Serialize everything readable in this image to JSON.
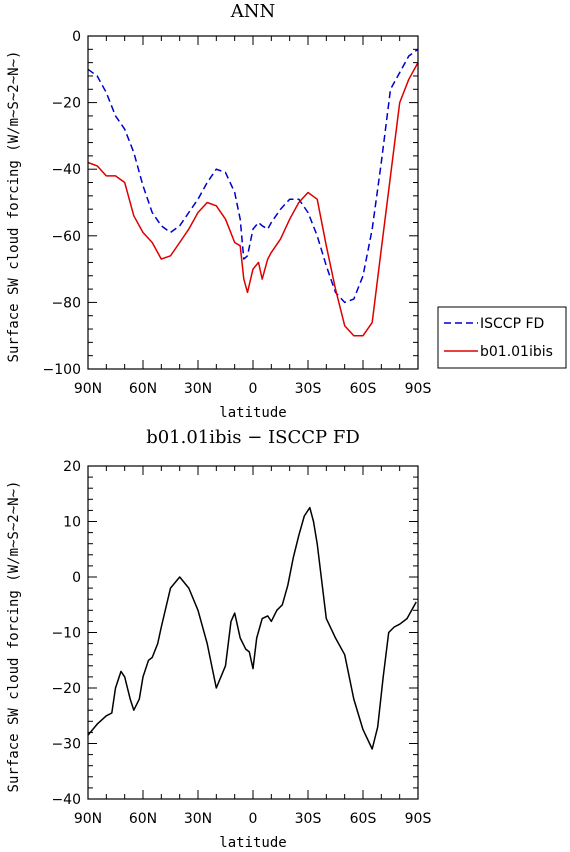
{
  "chart_data": [
    {
      "type": "line",
      "title": "ANN",
      "xlabel": "latitude",
      "ylabel": "Surface SW cloud forcing (W/m~S~2~N~)",
      "x_tick_labels": [
        "90N",
        "60N",
        "30N",
        "0",
        "30S",
        "60S",
        "90S"
      ],
      "x_tick_values": [
        90,
        60,
        30,
        0,
        -30,
        -60,
        -90
      ],
      "xlim": [
        90,
        -90
      ],
      "ylim": [
        -100,
        0
      ],
      "y_ticks": [
        0,
        -20,
        -40,
        -60,
        -80,
        -100
      ],
      "y_tick_labels": [
        "0",
        "−20",
        "−40",
        "−60",
        "−80",
        "−100"
      ],
      "legend": {
        "placement": "outside-right"
      },
      "x": [
        90,
        85,
        80,
        75,
        70,
        65,
        60,
        55,
        50,
        45,
        40,
        35,
        30,
        25,
        20,
        15,
        10,
        7,
        5,
        3,
        0,
        -3,
        -5,
        -8,
        -10,
        -15,
        -20,
        -25,
        -30,
        -35,
        -40,
        -45,
        -50,
        -55,
        -60,
        -65,
        -70,
        -75,
        -80,
        -85,
        -90
      ],
      "series": [
        {
          "name": "ISCCP FD",
          "color": "#0000cc",
          "dash": "dashed",
          "values": [
            -10,
            -12,
            -17,
            -24,
            -28,
            -35,
            -45,
            -53,
            -57,
            -59,
            -57,
            -53,
            -49,
            -44,
            -40,
            -41,
            -47,
            -55,
            -67,
            -66,
            -58,
            -56,
            -57,
            -58,
            -56,
            -52,
            -49,
            -49,
            -53,
            -60,
            -69,
            -77,
            -80,
            -79,
            -72,
            -58,
            -38,
            -16,
            -11,
            -6,
            -4
          ]
        },
        {
          "name": "b01.01ibis",
          "color": "#dd0000",
          "dash": "solid",
          "values": [
            -38,
            -39,
            -42,
            -42,
            -44,
            -54,
            -59,
            -62,
            -67,
            -66,
            -62,
            -58,
            -53,
            -50,
            -51,
            -55,
            -62,
            -63,
            -73,
            -77,
            -70,
            -68,
            -73,
            -67,
            -65,
            -61,
            -55,
            -50,
            -47,
            -49,
            -63,
            -76,
            -87,
            -90,
            -90,
            -86,
            -64,
            -42,
            -20,
            -13,
            -8
          ]
        }
      ]
    },
    {
      "type": "line",
      "title": "b01.01ibis − ISCCP FD",
      "xlabel": "latitude",
      "ylabel": "Surface SW cloud forcing (W/m~S~2~N~)",
      "x_tick_labels": [
        "90N",
        "60N",
        "30N",
        "0",
        "30S",
        "60S",
        "90S"
      ],
      "x_tick_values": [
        90,
        60,
        30,
        0,
        -30,
        -60,
        -90
      ],
      "xlim": [
        90,
        -90
      ],
      "ylim": [
        -40,
        20
      ],
      "y_ticks": [
        20,
        10,
        0,
        -10,
        -20,
        -30,
        -40
      ],
      "y_tick_labels": [
        "20",
        "10",
        "0",
        "−10",
        "−20",
        "−30",
        "−40"
      ],
      "x": [
        90,
        85,
        80,
        77,
        75,
        72,
        70,
        67,
        65,
        62,
        60,
        57,
        55,
        52,
        50,
        45,
        40,
        35,
        30,
        25,
        20,
        15,
        12,
        10,
        7,
        4,
        2,
        0,
        -2,
        -5,
        -8,
        -10,
        -13,
        -16,
        -19,
        -22,
        -25,
        -28,
        -31,
        -33,
        -35,
        -40,
        -45,
        -50,
        -55,
        -60,
        -65,
        -68,
        -71,
        -74,
        -77,
        -80,
        -84,
        -89
      ],
      "series": [
        {
          "name": "",
          "color": "#000000",
          "dash": "solid",
          "values": [
            -28.5,
            -26.5,
            -25,
            -24.5,
            -20,
            -17,
            -18,
            -22,
            -24,
            -22,
            -18,
            -15,
            -14.5,
            -12,
            -9,
            -2,
            0,
            -2,
            -6,
            -12,
            -20,
            -16,
            -8,
            -6.5,
            -11,
            -13,
            -13.5,
            -16.5,
            -11,
            -7.5,
            -7,
            -8,
            -6,
            -5,
            -1.5,
            3.5,
            7.5,
            11,
            12.5,
            10,
            6,
            -7.5,
            -11,
            -14,
            -22,
            -27.5,
            -31,
            -27,
            -18,
            -10,
            -9,
            -8.5,
            -7.5,
            -4.5
          ]
        }
      ]
    }
  ]
}
